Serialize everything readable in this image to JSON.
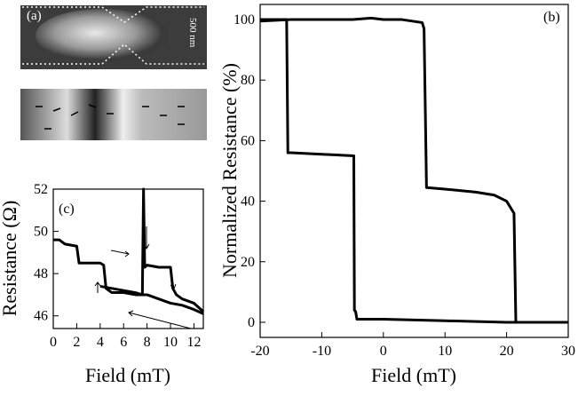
{
  "images": {
    "panel_label": "(a)",
    "scale_bar": "500 nm"
  },
  "chart_data": [
    {
      "type": "line",
      "label": "(b)",
      "x_label": "Field (mT)",
      "y_label": "Normalized Resistance (%)",
      "xlim": [
        -20,
        30
      ],
      "xticks": [
        -20,
        -10,
        0,
        10,
        20,
        30
      ],
      "ylim": [
        -5,
        105
      ],
      "yticks": [
        0,
        20,
        40,
        60,
        80,
        100
      ],
      "series": [
        {
          "color": "#000000",
          "x": [
            -20,
            -15,
            -10,
            -5,
            -2,
            0,
            3,
            6.3,
            6.6,
            7,
            10,
            15,
            18,
            20,
            21.2,
            21.5,
            25,
            30
          ],
          "values": [
            99.5,
            100,
            100,
            100,
            100.5,
            100,
            100,
            99,
            97,
            44.5,
            44,
            43,
            42,
            40,
            36,
            0,
            0,
            0
          ]
        },
        {
          "color": "#000000",
          "x": [
            30,
            25,
            20,
            10,
            0,
            -2,
            -4.3,
            -4.5,
            -4.7,
            -4.8,
            -10,
            -15,
            -15.5,
            -15.7,
            -20
          ],
          "values": [
            0,
            0,
            0,
            0.5,
            1,
            1,
            1,
            3.5,
            4,
            55,
            55.5,
            56,
            56,
            100,
            100
          ]
        }
      ]
    },
    {
      "type": "line",
      "label": "(c)",
      "x_label": "Field (mT)",
      "y_label": "Resistance (Ω)",
      "xlim": [
        0,
        12.8
      ],
      "xticks": [
        0,
        2,
        4,
        6,
        8,
        10,
        12
      ],
      "ylim": [
        45.4,
        52
      ],
      "yticks": [
        46,
        48,
        50,
        52
      ],
      "series": [
        {
          "color": "#000000",
          "x": [
            12.8,
            12,
            11,
            10,
            9,
            8,
            7,
            6,
            5,
            4.5,
            4.3,
            4,
            3,
            2.2,
            2,
            1,
            0.5,
            0
          ],
          "values": [
            46.1,
            46.3,
            46.5,
            46.6,
            46.8,
            47,
            47,
            47.1,
            47.1,
            47.3,
            48.4,
            48.5,
            48.5,
            48.5,
            49.3,
            49.4,
            49.6,
            49.6
          ]
        },
        {
          "color": "#000000",
          "x": [
            4,
            5,
            6,
            7,
            7.6,
            7.7,
            7.8,
            8,
            9,
            10,
            10.2,
            10.5,
            11,
            12,
            12.8
          ],
          "values": [
            47.4,
            47.3,
            47.2,
            47.1,
            47,
            52,
            48.3,
            48.4,
            48.3,
            48.3,
            47.3,
            47,
            46.8,
            46.6,
            46.2
          ]
        }
      ]
    }
  ]
}
